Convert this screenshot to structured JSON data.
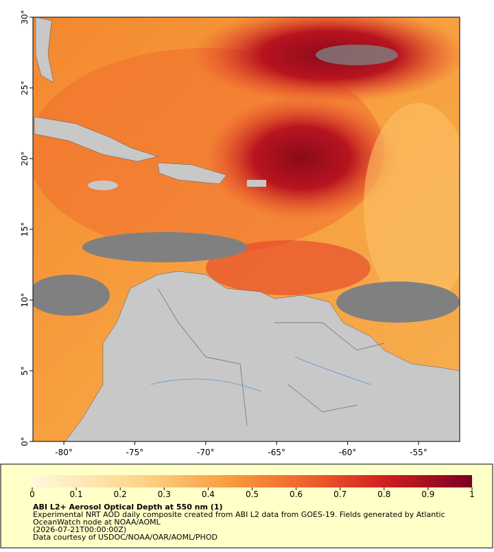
{
  "map": {
    "xlim": [
      -82.18,
      -52.1
    ],
    "ylim": [
      0,
      30
    ],
    "xticks": [
      {
        "value": -80,
        "label": "-80°"
      },
      {
        "value": -75,
        "label": "-75°"
      },
      {
        "value": -70,
        "label": "-70°"
      },
      {
        "value": -65,
        "label": "-65°"
      },
      {
        "value": -60,
        "label": "-60°"
      },
      {
        "value": -55,
        "label": "-55°"
      }
    ],
    "yticks": [
      {
        "value": 0,
        "label": "0°"
      },
      {
        "value": 5,
        "label": "5°"
      },
      {
        "value": 10,
        "label": "10°"
      },
      {
        "value": 15,
        "label": "15°"
      },
      {
        "value": 20,
        "label": "20°"
      },
      {
        "value": 25,
        "label": "25°"
      },
      {
        "value": 30,
        "label": "30°"
      }
    ]
  },
  "colorbar": {
    "lim": [
      0,
      1
    ],
    "ticks": [
      0,
      0.1,
      0.2,
      0.3,
      0.4,
      0.5,
      0.6,
      0.7,
      0.8,
      0.9,
      1
    ]
  },
  "title": "ABI L2+ Aerosol Optical Depth at 550 nm (1)",
  "caption": [
    "Experimental NRT AOD daily composite created from ABI L2 data from GOES-19. Fields generated by Atlantic",
    "OceanWatch node at NOAA/AOML",
    "(2026-07-21T00:00:00Z)",
    "Data courtesy of USDOC/NOAA/OAR/AOML/PHOD"
  ]
}
